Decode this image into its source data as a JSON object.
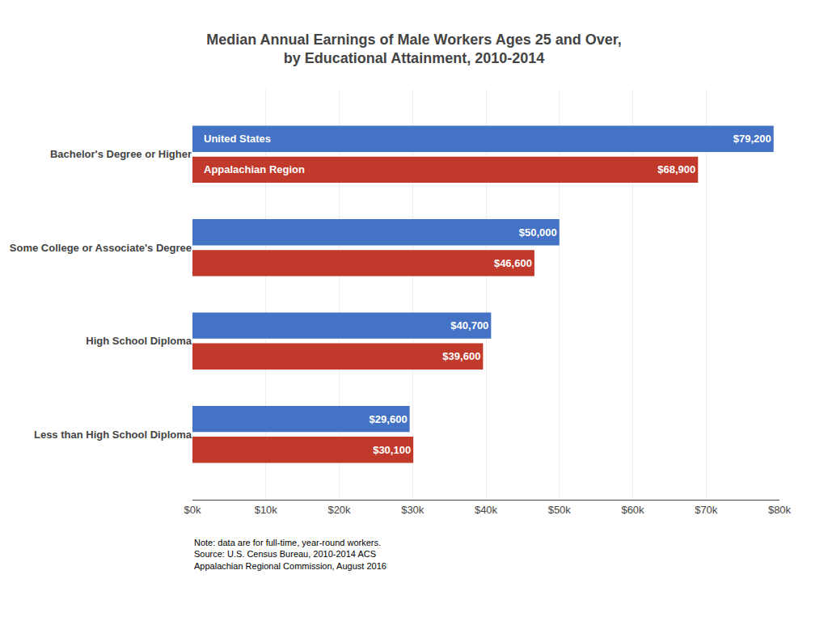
{
  "chart_data": {
    "type": "bar",
    "orientation": "horizontal",
    "title": "Median Annual Earnings of Male Workers Ages 25 and Over,\nby Educational Attainment, 2010-2014",
    "categories": [
      "Less than High School Diploma",
      "High School Diploma",
      "Some College or Associate's Degree",
      "Bachelor's Degree or Higher"
    ],
    "series": [
      {
        "name": "United States",
        "color": "#4472C4",
        "values": [
          29600,
          40700,
          50000,
          79200
        ],
        "value_labels": [
          "$29,600",
          "$40,700",
          "$50,000",
          "$79,200"
        ]
      },
      {
        "name": "Appalachian Region",
        "color": "#C0392B",
        "values": [
          30100,
          39600,
          46600,
          68900
        ],
        "value_labels": [
          "$30,100",
          "$39,600",
          "$46,600",
          "$68,900"
        ]
      }
    ],
    "xlim": [
      0,
      80000
    ],
    "xticks": [
      {
        "value": 0,
        "label": "$0k"
      },
      {
        "value": 10000,
        "label": "$10k"
      },
      {
        "value": 20000,
        "label": "$20k"
      },
      {
        "value": 30000,
        "label": "$30k"
      },
      {
        "value": 40000,
        "label": "$40k"
      },
      {
        "value": 50000,
        "label": "$50k"
      },
      {
        "value": 60000,
        "label": "$60k"
      },
      {
        "value": 70000,
        "label": "$70k"
      },
      {
        "value": 80000,
        "label": "$80k"
      }
    ],
    "grid": true,
    "data_labels": true,
    "annotations": [
      "Note: data are for full-time, year-round workers.\nSource: U.S. Census Bureau, 2010-2014 ACS\nAppalachian Regional Commission, August 2016"
    ]
  }
}
